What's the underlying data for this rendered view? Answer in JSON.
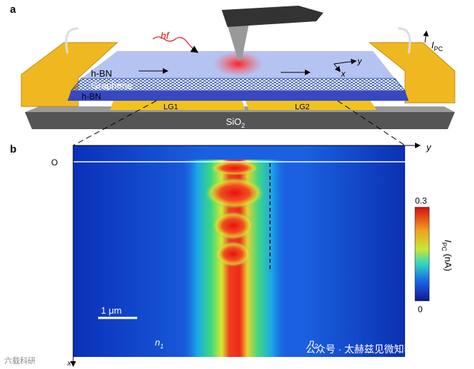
{
  "panel_a": {
    "label": "a",
    "hf": "hf",
    "top_layer": "h-BN",
    "graphene": "Graphene",
    "bottom_layer": "h-BN",
    "gate1": "LG1",
    "gate2": "LG2",
    "substrate": {
      "text": "SiO",
      "sub": "2"
    },
    "axis_y": "y",
    "axis_x": "x",
    "current": {
      "text": "I",
      "sub": "PC"
    }
  },
  "panel_b": {
    "label": "b",
    "axis_y": "y",
    "axis_x": "x",
    "origin": "O",
    "colorbar": {
      "max": "0.3",
      "min": "0",
      "title": {
        "text": "I",
        "sub": "PC",
        "unit": " (nA)"
      }
    },
    "scale_bar": "1 μm",
    "n1": {
      "text": "n",
      "sub": "1"
    },
    "n2": {
      "text": "n",
      "sub": "2"
    }
  },
  "watermarks": {
    "left": "六载科研",
    "right": "公众号 · 太赫兹见微知著"
  }
}
